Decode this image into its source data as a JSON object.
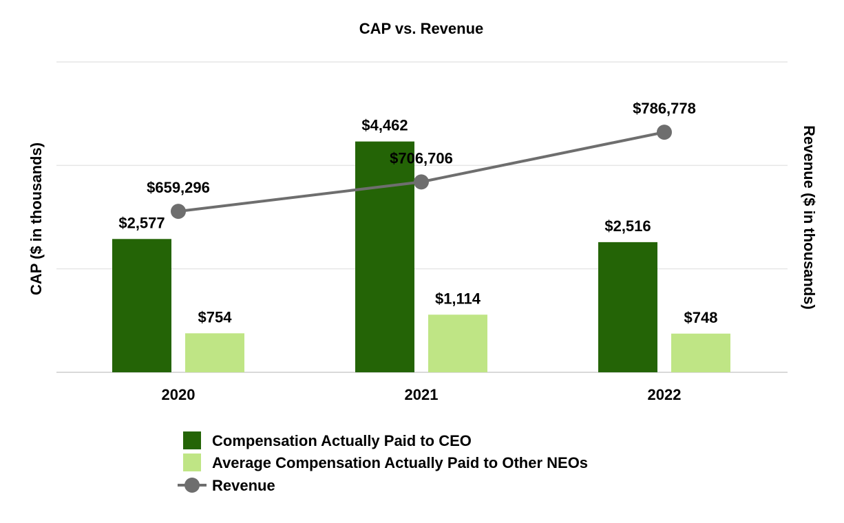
{
  "chart_data": {
    "type": "bar",
    "title": "CAP vs. Revenue",
    "categories": [
      "2020",
      "2021",
      "2022"
    ],
    "ylabel": "CAP ($ in thousands)",
    "y2label": "Revenue ($ in thousands)",
    "series": [
      {
        "name": "Compensation Actually Paid to CEO",
        "kind": "bar",
        "axis": "left",
        "color": "#246406",
        "values": [
          2577,
          4462,
          2516
        ],
        "labels": [
          "$2,577",
          "$4,462",
          "$2,516"
        ]
      },
      {
        "name": "Average Compensation Actually Paid to Other NEOs",
        "kind": "bar",
        "axis": "left",
        "color": "#bfe585",
        "values": [
          754,
          1114,
          748
        ],
        "labels": [
          "$754",
          "$1,114",
          "$748"
        ]
      },
      {
        "name": "Revenue",
        "kind": "line",
        "axis": "right",
        "color": "#6e6e6e",
        "values": [
          659296,
          706706,
          786778
        ],
        "labels": [
          "$659,296",
          "$706,706",
          "$786,778"
        ]
      }
    ],
    "ylim": [
      0,
      6000
    ],
    "y2lim": [
      400000,
      900000
    ],
    "grid": true,
    "legend_position": "bottom"
  }
}
